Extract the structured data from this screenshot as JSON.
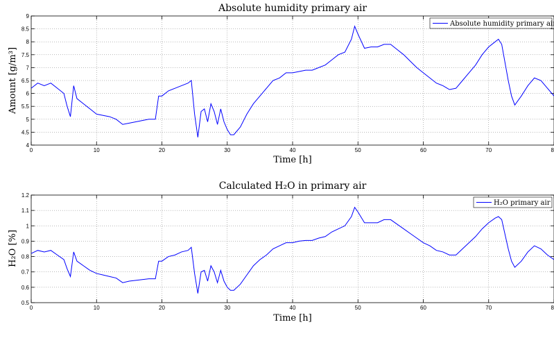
{
  "chart_data": [
    {
      "type": "line",
      "title": "Absolute humidity primary air",
      "xlabel": "Time [h]",
      "ylabel": "Amount [g/m³]",
      "xlim": [
        0,
        80
      ],
      "ylim": [
        4,
        9
      ],
      "xticks": [
        0,
        10,
        20,
        30,
        40,
        50,
        60,
        70,
        80
      ],
      "yticks": [
        4,
        4.5,
        5,
        5.5,
        6,
        6.5,
        7,
        7.5,
        8,
        8.5,
        9
      ],
      "grid": true,
      "legend_position": "top-right",
      "series": [
        {
          "name": "Absolute humidity primary air",
          "color": "#0000ff",
          "x": [
            0,
            1,
            2,
            3,
            4,
            5,
            5.5,
            6,
            6.5,
            7,
            8,
            9,
            10,
            11,
            12,
            13,
            14,
            15,
            16,
            17,
            18,
            19,
            19.5,
            20,
            21,
            22,
            23,
            24,
            24.5,
            25,
            25.5,
            26,
            26.5,
            27,
            27.5,
            28,
            28.5,
            29,
            29.5,
            30,
            30.5,
            31,
            32,
            33,
            34,
            35,
            36,
            37,
            38,
            39,
            40,
            41,
            42,
            43,
            44,
            45,
            46,
            47,
            48,
            49,
            49.5,
            50,
            51,
            52,
            53,
            54,
            55,
            56,
            57,
            58,
            59,
            60,
            61,
            62,
            63,
            64,
            65,
            66,
            67,
            68,
            69,
            70,
            71,
            71.5,
            72,
            73,
            73.5,
            74,
            75,
            76,
            77,
            78,
            79,
            80
          ],
          "y": [
            6.2,
            6.4,
            6.3,
            6.4,
            6.2,
            6.0,
            5.5,
            5.1,
            6.3,
            5.8,
            5.6,
            5.4,
            5.2,
            5.15,
            5.1,
            5.0,
            4.8,
            4.85,
            4.9,
            4.95,
            5.0,
            5.0,
            5.9,
            5.9,
            6.1,
            6.2,
            6.3,
            6.4,
            6.5,
            5.2,
            4.3,
            5.3,
            5.4,
            4.9,
            5.6,
            5.3,
            4.8,
            5.4,
            4.9,
            4.6,
            4.4,
            4.4,
            4.7,
            5.2,
            5.6,
            5.9,
            6.2,
            6.5,
            6.6,
            6.8,
            6.8,
            6.85,
            6.9,
            6.9,
            7.0,
            7.1,
            7.3,
            7.5,
            7.6,
            8.1,
            8.6,
            8.3,
            7.75,
            7.8,
            7.8,
            7.9,
            7.9,
            7.7,
            7.5,
            7.25,
            7.0,
            6.8,
            6.6,
            6.4,
            6.3,
            6.15,
            6.2,
            6.5,
            6.8,
            7.1,
            7.5,
            7.8,
            8.0,
            8.1,
            7.9,
            6.5,
            5.9,
            5.55,
            5.9,
            6.3,
            6.6,
            6.5,
            6.2,
            5.9
          ]
        }
      ]
    },
    {
      "type": "line",
      "title": "Calculated H₂O in primary air",
      "xlabel": "Time [h]",
      "ylabel": "H₂O [%]",
      "xlim": [
        0,
        80
      ],
      "ylim": [
        0.5,
        1.2
      ],
      "xticks": [
        0,
        10,
        20,
        30,
        40,
        50,
        60,
        70,
        80
      ],
      "yticks": [
        0.5,
        0.6,
        0.7,
        0.8,
        0.9,
        1,
        1.1,
        1.2
      ],
      "grid": true,
      "legend_position": "top-right",
      "series": [
        {
          "name": "H₂O primary air",
          "color": "#0000ff",
          "x": [
            0,
            1,
            2,
            3,
            4,
            5,
            5.5,
            6,
            6.5,
            7,
            8,
            9,
            10,
            11,
            12,
            13,
            14,
            15,
            16,
            17,
            18,
            19,
            19.5,
            20,
            21,
            22,
            23,
            24,
            24.5,
            25,
            25.5,
            26,
            26.5,
            27,
            27.5,
            28,
            28.5,
            29,
            29.5,
            30,
            30.5,
            31,
            32,
            33,
            34,
            35,
            36,
            37,
            38,
            39,
            40,
            41,
            42,
            43,
            44,
            45,
            46,
            47,
            48,
            49,
            49.5,
            50,
            51,
            52,
            53,
            54,
            55,
            56,
            57,
            58,
            59,
            60,
            61,
            62,
            63,
            64,
            65,
            66,
            67,
            68,
            69,
            70,
            71,
            71.5,
            72,
            73,
            73.5,
            74,
            75,
            76,
            77,
            78,
            79,
            80
          ],
          "y": [
            0.82,
            0.84,
            0.83,
            0.84,
            0.81,
            0.78,
            0.72,
            0.67,
            0.83,
            0.77,
            0.74,
            0.71,
            0.69,
            0.68,
            0.67,
            0.66,
            0.63,
            0.64,
            0.645,
            0.65,
            0.655,
            0.655,
            0.77,
            0.77,
            0.8,
            0.81,
            0.83,
            0.84,
            0.86,
            0.69,
            0.56,
            0.7,
            0.71,
            0.64,
            0.74,
            0.7,
            0.63,
            0.71,
            0.64,
            0.6,
            0.58,
            0.58,
            0.62,
            0.68,
            0.74,
            0.78,
            0.81,
            0.85,
            0.87,
            0.89,
            0.89,
            0.9,
            0.905,
            0.905,
            0.92,
            0.93,
            0.96,
            0.98,
            1.0,
            1.06,
            1.12,
            1.09,
            1.02,
            1.02,
            1.02,
            1.04,
            1.04,
            1.01,
            0.98,
            0.95,
            0.92,
            0.89,
            0.87,
            0.84,
            0.83,
            0.81,
            0.81,
            0.85,
            0.89,
            0.93,
            0.98,
            1.02,
            1.05,
            1.06,
            1.04,
            0.85,
            0.77,
            0.73,
            0.77,
            0.83,
            0.87,
            0.85,
            0.81,
            0.78
          ]
        }
      ]
    }
  ]
}
